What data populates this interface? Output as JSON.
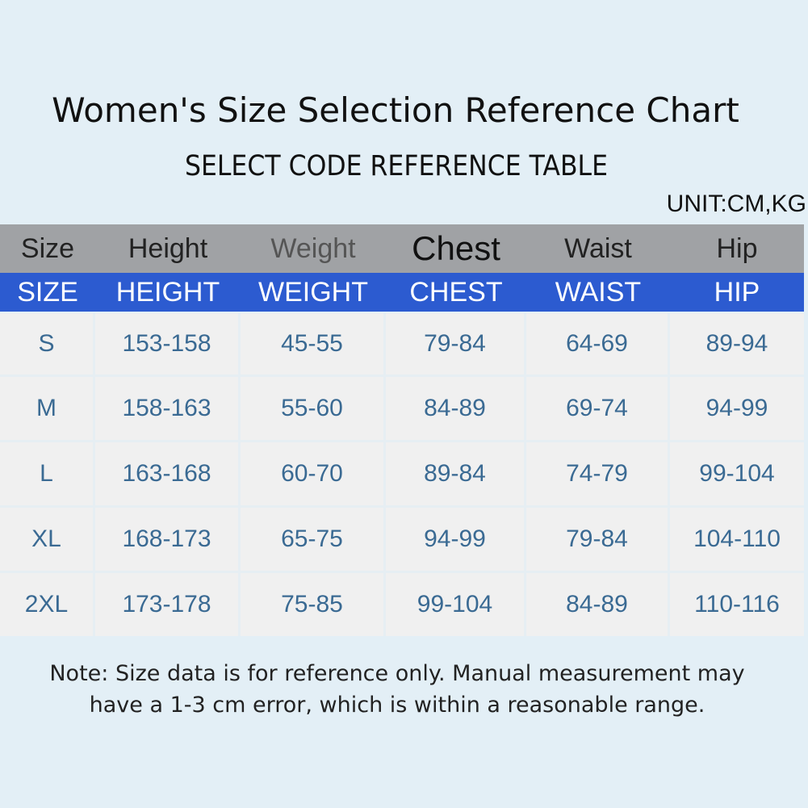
{
  "title": "Women's Size Selection Reference Chart",
  "subtitle": "SELECT CODE REFERENCE TABLE",
  "unit": "UNIT:CM,KG",
  "table": {
    "header_en": [
      "Size",
      "Height",
      "Weight",
      "Chest",
      "Waist",
      "Hip"
    ],
    "header_caps": [
      "SIZE",
      "HEIGHT",
      "WEIGHT",
      "CHEST",
      "WAIST",
      "HIP"
    ],
    "rows": [
      [
        "S",
        "153-158",
        "45-55",
        "79-84",
        "64-69",
        "89-94"
      ],
      [
        "M",
        "158-163",
        "55-60",
        "84-89",
        "69-74",
        "94-99"
      ],
      [
        "L",
        "163-168",
        "60-70",
        "89-84",
        "74-79",
        "99-104"
      ],
      [
        "XL",
        "168-173",
        "65-75",
        "94-99",
        "79-84",
        "104-110"
      ],
      [
        "2XL",
        "173-178",
        "75-85",
        "99-104",
        "84-89",
        "110-116"
      ]
    ]
  },
  "note": {
    "line1": "Note: Size data is for reference only. Manual measurement may",
    "line2": "have a 1-3 cm error, which is within a reasonable range."
  },
  "colors": {
    "background": "#e3eff6",
    "header_gray": "#a0a2a5",
    "header_blue": "#2c5bd0",
    "value_text": "#3a6a93"
  }
}
